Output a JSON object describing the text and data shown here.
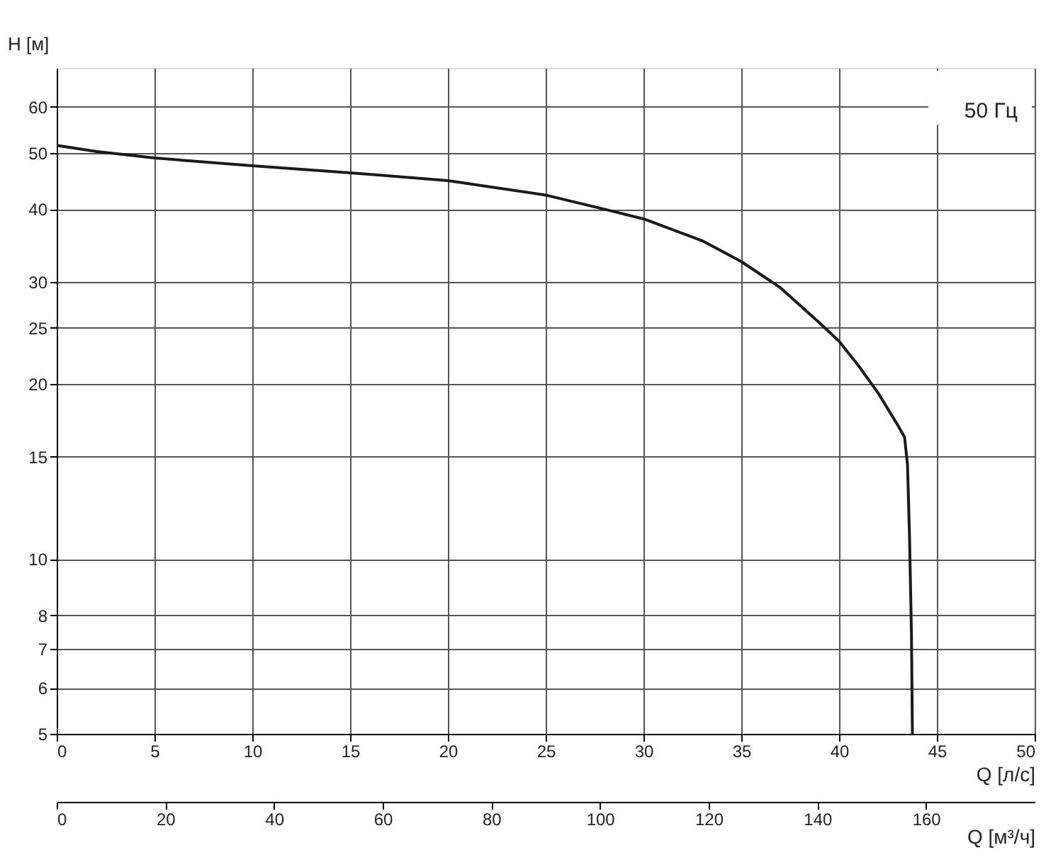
{
  "chart_data": {
    "type": "line",
    "ylabel": "H [м]",
    "xlabel": "Q [л/с]",
    "x2label": "Q [м³/ч]",
    "annotations": [
      "50 Гц"
    ],
    "series": [
      {
        "color": "#1a1a1a",
        "x": [
          0,
          2,
          5,
          10,
          15,
          20,
          25,
          28,
          30,
          33,
          35,
          37,
          39,
          40,
          41,
          42,
          43,
          43.35,
          43.5,
          43.6,
          43.7,
          43.75
        ],
        "values": [
          51.5,
          50.3,
          49,
          47.5,
          46.2,
          44.8,
          42.3,
          40,
          38.5,
          35.3,
          32.5,
          29.3,
          25.5,
          23.7,
          21.5,
          19.3,
          17,
          16.2,
          14.5,
          11,
          7.5,
          5
        ]
      }
    ],
    "xlim": [
      0,
      50
    ],
    "xticks": [
      0,
      5,
      10,
      15,
      20,
      25,
      30,
      35,
      40,
      45,
      50
    ],
    "x2lim": [
      0,
      180
    ],
    "x2ticks": [
      0,
      20,
      40,
      60,
      80,
      100,
      120,
      140,
      160
    ],
    "ylim": [
      5,
      70
    ],
    "yticks": [
      5,
      6,
      7,
      8,
      10,
      15,
      20,
      25,
      30,
      40,
      50,
      60
    ],
    "log": "y",
    "grid": true,
    "line_style": "solid",
    "marker": "none"
  }
}
